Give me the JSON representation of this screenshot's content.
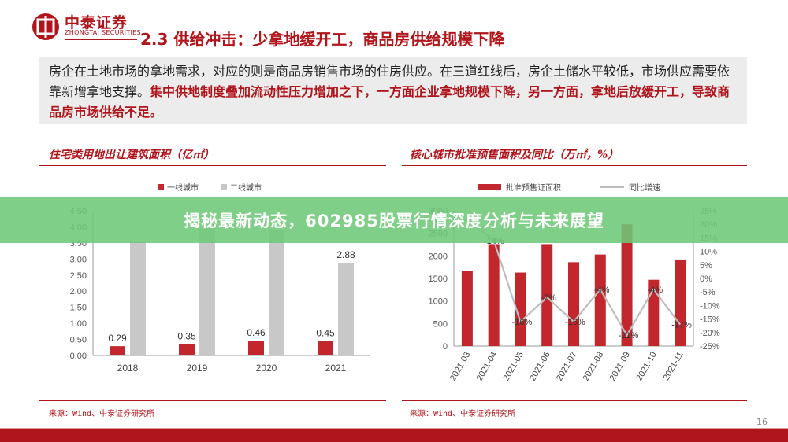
{
  "header": {
    "logo_cn": "中泰证券",
    "logo_en": "ZHONGTAI SECURITIES",
    "title": "2.3 供给冲击：少拿地缓开工，商品房供给规模下降"
  },
  "intro": {
    "text_normal": "房企在土地市场的拿地需求，对应的则是商品房销售市场的住房供应。在三道红线后，房企土储水平较低，市场供应需要依靠新增拿地支撑。",
    "text_highlight": "集中供地制度叠加流动性压力增加之下，一方面企业拿地规模下降，另一方面，拿地后放缓开工，导致商品房市场供给不足。"
  },
  "banner": {
    "text": "揭秘最新动态，602985股票行情深度分析与未来展望"
  },
  "page_number": "16",
  "colors": {
    "brand": "#b1151c",
    "bar_red": "#c1272d",
    "bar_gray": "#c8c8c8",
    "line_gray": "#bdbdbd",
    "banner": "#6ec878"
  },
  "chart_data": [
    {
      "type": "bar",
      "title": "住宅类用地出让建筑面积（亿㎡）",
      "source": "来源：Wind、中泰证券研究所",
      "categories": [
        "2018",
        "2019",
        "2020",
        "2021"
      ],
      "series": [
        {
          "name": "一线城市",
          "values": [
            0.29,
            0.35,
            0.46,
            0.45
          ],
          "color": "#c1272d"
        },
        {
          "name": "二线城市",
          "values": [
            3.55,
            3.95,
            3.9,
            2.88
          ],
          "color": "#c8c8c8"
        }
      ],
      "data_labels": {
        "一线城市": [
          "0.29",
          "0.35",
          "0.46",
          "0.45"
        ],
        "二线城市": [
          "",
          "",
          "",
          "2.88"
        ]
      },
      "ylim": [
        0,
        4.5
      ],
      "yticks": [
        "0.00",
        "0.50",
        "1.00",
        "1.50",
        "2.00",
        "2.50",
        "3.00",
        "3.50",
        "4.00",
        "4.50"
      ],
      "legend_position": "top",
      "grid": false
    },
    {
      "type": "bar",
      "title": "核心城市批准预售面积及同比（万㎡，%）",
      "source": "来源：Wind、中泰证券研究所",
      "categories": [
        "2021-03",
        "2021-04",
        "2021-05",
        "2021-06",
        "2021-07",
        "2021-08",
        "2021-09",
        "2021-10",
        "2021-11"
      ],
      "series": [
        {
          "name": "批准预售证面积",
          "type": "bar",
          "axis": "left",
          "values": [
            1670,
            2260,
            1630,
            2260,
            1860,
            2030,
            2700,
            1470,
            1920
          ],
          "color": "#c1272d"
        },
        {
          "name": "同比增速",
          "type": "line",
          "axis": "right",
          "values": [
            22,
            14,
            -16,
            -7,
            -16,
            -4,
            -21,
            -4,
            -17
          ],
          "color": "#bdbdbd"
        }
      ],
      "line_labels": [
        "",
        "14%",
        "-16%",
        "-7%",
        "-16%",
        "-4%",
        "-21%",
        "-4%",
        "-17%"
      ],
      "ylim_left": [
        0,
        3000
      ],
      "yticks_left": [
        "0",
        "500",
        "1000",
        "1500",
        "2000",
        "2500",
        "3000"
      ],
      "ylim_right": [
        -25,
        25
      ],
      "yticks_right": [
        "-25%",
        "-20%",
        "-15%",
        "-10%",
        "-5%",
        "0%",
        "5%",
        "10%",
        "15%",
        "20%",
        "25%"
      ],
      "legend_position": "top",
      "grid": false
    }
  ]
}
